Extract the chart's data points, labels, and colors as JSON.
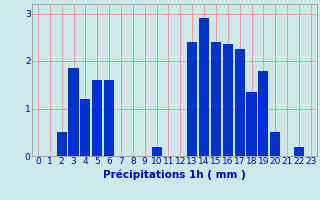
{
  "categories": [
    0,
    1,
    2,
    3,
    4,
    5,
    6,
    7,
    8,
    9,
    10,
    11,
    12,
    13,
    14,
    15,
    16,
    17,
    18,
    19,
    20,
    21,
    22,
    23
  ],
  "values": [
    0,
    0,
    0.5,
    1.85,
    1.2,
    1.6,
    1.6,
    0,
    0,
    0,
    0.2,
    0,
    0,
    2.4,
    2.9,
    2.4,
    2.35,
    2.25,
    1.35,
    1.8,
    0.5,
    0,
    0.2,
    0
  ],
  "bar_color": "#0033cc",
  "background_color": "#cce8e8",
  "grid_color": "#ff9999",
  "xlabel": "Précipitations 1h ( mm )",
  "ylim": [
    0,
    3.2
  ],
  "yticks": [
    0,
    1,
    2,
    3
  ],
  "tick_fontsize": 6.5,
  "xlabel_fontsize": 7.5,
  "bar_width": 0.85
}
